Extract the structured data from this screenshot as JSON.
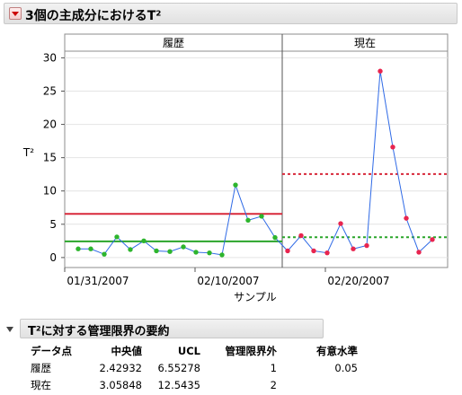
{
  "outline": {
    "title": "3個の主成分におけるT²"
  },
  "chart_data": {
    "type": "line",
    "ylabel": "T²",
    "xlabel": "サンプル",
    "ylim": [
      -1.5,
      31
    ],
    "yticks": [
      0,
      5,
      10,
      15,
      20,
      25,
      30
    ],
    "panels": [
      {
        "label": "履歴",
        "center": 2.42932,
        "ucl": 6.55278,
        "values": [
          1.3,
          1.3,
          0.5,
          3.1,
          1.2,
          2.5,
          1.0,
          0.9,
          1.6,
          0.8,
          0.7,
          0.4,
          10.9,
          5.6,
          6.2,
          3.0
        ]
      },
      {
        "label": "現在",
        "center": 3.05848,
        "ucl": 12.5435,
        "values": [
          1.0,
          3.3,
          1.0,
          0.7,
          5.1,
          1.3,
          1.8,
          28.0,
          16.6,
          5.9,
          0.8,
          2.7
        ]
      }
    ],
    "xticks": [
      "01/31/2007",
      "02/10/2007",
      "02/20/2007"
    ],
    "colors": {
      "history_points": "#2db52d",
      "current_points": "#e8254f",
      "line": "#2f6ae6",
      "ucl": "#d8283a",
      "center": "#2aa52a"
    }
  },
  "summary": {
    "title": "T²に対する管理限界の要約",
    "headers": [
      "データ点",
      "中央値",
      "UCL",
      "管理限界外",
      "有意水準"
    ],
    "rows": [
      [
        "履歴",
        "2.42932",
        "6.55278",
        "1",
        "0.05"
      ],
      [
        "現在",
        "3.05848",
        "12.5435",
        "2",
        ""
      ]
    ]
  }
}
